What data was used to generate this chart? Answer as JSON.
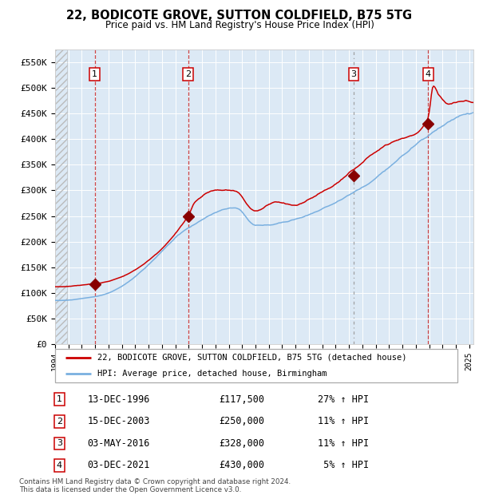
{
  "title": "22, BODICOTE GROVE, SUTTON COLDFIELD, B75 5TG",
  "subtitle": "Price paid vs. HM Land Registry's House Price Index (HPI)",
  "xlim": [
    1994.0,
    2025.3
  ],
  "ylim": [
    0,
    575000
  ],
  "yticks": [
    0,
    50000,
    100000,
    150000,
    200000,
    250000,
    300000,
    350000,
    400000,
    450000,
    500000,
    550000
  ],
  "ytick_labels": [
    "£0",
    "£50K",
    "£100K",
    "£150K",
    "£200K",
    "£250K",
    "£300K",
    "£350K",
    "£400K",
    "£450K",
    "£500K",
    "£550K"
  ],
  "background_color": "#dce9f5",
  "hpi_color": "#7ab0e0",
  "price_color": "#cc0000",
  "marker_color": "#880000",
  "sales": [
    {
      "number": 1,
      "date_str": "13-DEC-1996",
      "year": 1996.96,
      "price": 117500,
      "pct": "27%"
    },
    {
      "number": 2,
      "date_str": "15-DEC-2003",
      "year": 2003.96,
      "price": 250000,
      "pct": "11%"
    },
    {
      "number": 3,
      "date_str": "03-MAY-2016",
      "year": 2016.34,
      "price": 328000,
      "pct": "11%"
    },
    {
      "number": 4,
      "date_str": "03-DEC-2021",
      "year": 2021.92,
      "price": 430000,
      "pct": "5%"
    }
  ],
  "legend_line1": "22, BODICOTE GROVE, SUTTON COLDFIELD, B75 5TG (detached house)",
  "legend_line2": "HPI: Average price, detached house, Birmingham",
  "footnote": "Contains HM Land Registry data © Crown copyright and database right 2024.\nThis data is licensed under the Open Government Licence v3.0.",
  "table_rows": [
    [
      "1",
      "13-DEC-1996",
      "£117,500",
      "27% ↑ HPI"
    ],
    [
      "2",
      "15-DEC-2003",
      "£250,000",
      "11% ↑ HPI"
    ],
    [
      "3",
      "03-MAY-2016",
      "£328,000",
      "11% ↑ HPI"
    ],
    [
      "4",
      "03-DEC-2021",
      "£430,000",
      " 5% ↑ HPI"
    ]
  ]
}
